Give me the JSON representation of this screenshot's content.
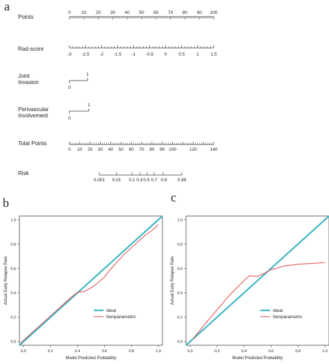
{
  "panels": {
    "a": "a",
    "b": "b",
    "c": "c"
  },
  "nomogram": {
    "rows": [
      {
        "key": "points",
        "label": "Points",
        "ticks": [
          "0",
          "10",
          "20",
          "30",
          "40",
          "50",
          "60",
          "70",
          "80",
          "90",
          "100"
        ]
      },
      {
        "key": "radscore",
        "label": "Rad-score",
        "ticks": [
          "-3",
          "-2.5",
          "-2",
          "-1.5",
          "-1",
          "-0.5",
          "0",
          "0.5",
          "1",
          "1.5"
        ]
      },
      {
        "key": "joint",
        "label_lines": [
          "Joint",
          "Invasion"
        ],
        "ticks": [
          "0",
          "1"
        ]
      },
      {
        "key": "perivascular",
        "label_lines": [
          "Perivascular",
          "Involvement"
        ],
        "ticks": [
          "0",
          "1"
        ]
      },
      {
        "key": "total",
        "label": "Total Points",
        "ticks": [
          "0",
          "10",
          "20",
          "30",
          "40",
          "50",
          "60",
          "70",
          "80",
          "90",
          "100",
          "120",
          "140"
        ]
      },
      {
        "key": "risk",
        "label": "Risk",
        "ticks": [
          "0.001",
          "0.01",
          "0.1",
          "0.3",
          "0.5",
          "0.7",
          "0.9",
          "0.99"
        ]
      }
    ]
  },
  "chart_data": [
    {
      "type": "line",
      "panel": "b",
      "xlabel": "Model Predicted Probability",
      "ylabel": "Actual Early Relapse Rate",
      "xlim": [
        -0.03,
        1.03
      ],
      "ylim": [
        -0.03,
        1.03
      ],
      "xticks": [
        "0.0",
        "0.2",
        "0.4",
        "0.6",
        "0.8",
        "1.0"
      ],
      "yticks": [
        "0.0",
        "0.2",
        "0.4",
        "0.6",
        "0.8",
        "1.0"
      ],
      "legend_position": "center-right",
      "series": [
        {
          "name": "Ideal",
          "color": "#3fb8c4",
          "x": [
            -0.03,
            1.03
          ],
          "y": [
            -0.03,
            1.03
          ]
        },
        {
          "name": "Nonparametric",
          "color": "#e0585c",
          "x": [
            -0.02,
            0.05,
            0.1,
            0.15,
            0.2,
            0.25,
            0.3,
            0.35,
            0.4,
            0.45,
            0.5,
            0.55,
            0.6,
            0.65,
            0.7,
            0.75,
            0.8,
            0.85,
            0.9,
            0.95,
            1.0
          ],
          "y": [
            -0.01,
            0.06,
            0.11,
            0.16,
            0.21,
            0.26,
            0.31,
            0.36,
            0.405,
            0.41,
            0.44,
            0.48,
            0.53,
            0.6,
            0.66,
            0.72,
            0.77,
            0.82,
            0.87,
            0.91,
            0.96
          ]
        }
      ]
    },
    {
      "type": "line",
      "panel": "c",
      "xlabel": "Model Predicted Probability",
      "ylabel": "Actual Early Relapse Rate",
      "xlim": [
        -0.03,
        1.03
      ],
      "ylim": [
        -0.03,
        1.03
      ],
      "xticks": [
        "0.0",
        "0.2",
        "0.4",
        "0.6",
        "0.8",
        "1.0"
      ],
      "yticks": [
        "0.0",
        "0.2",
        "0.4",
        "0.6",
        "0.8",
        "1.0"
      ],
      "legend_position": "center-right",
      "series": [
        {
          "name": "Ideal",
          "color": "#3fb8c4",
          "x": [
            -0.03,
            1.03
          ],
          "y": [
            -0.03,
            1.03
          ]
        },
        {
          "name": "Nonparametric",
          "color": "#e0585c",
          "x": [
            0.02,
            0.1,
            0.2,
            0.3,
            0.4,
            0.44,
            0.5,
            0.55,
            0.6,
            0.7,
            0.8,
            0.9,
            1.0
          ],
          "y": [
            0.02,
            0.13,
            0.26,
            0.39,
            0.5,
            0.54,
            0.535,
            0.56,
            0.59,
            0.62,
            0.635,
            0.64,
            0.65
          ]
        }
      ]
    }
  ]
}
